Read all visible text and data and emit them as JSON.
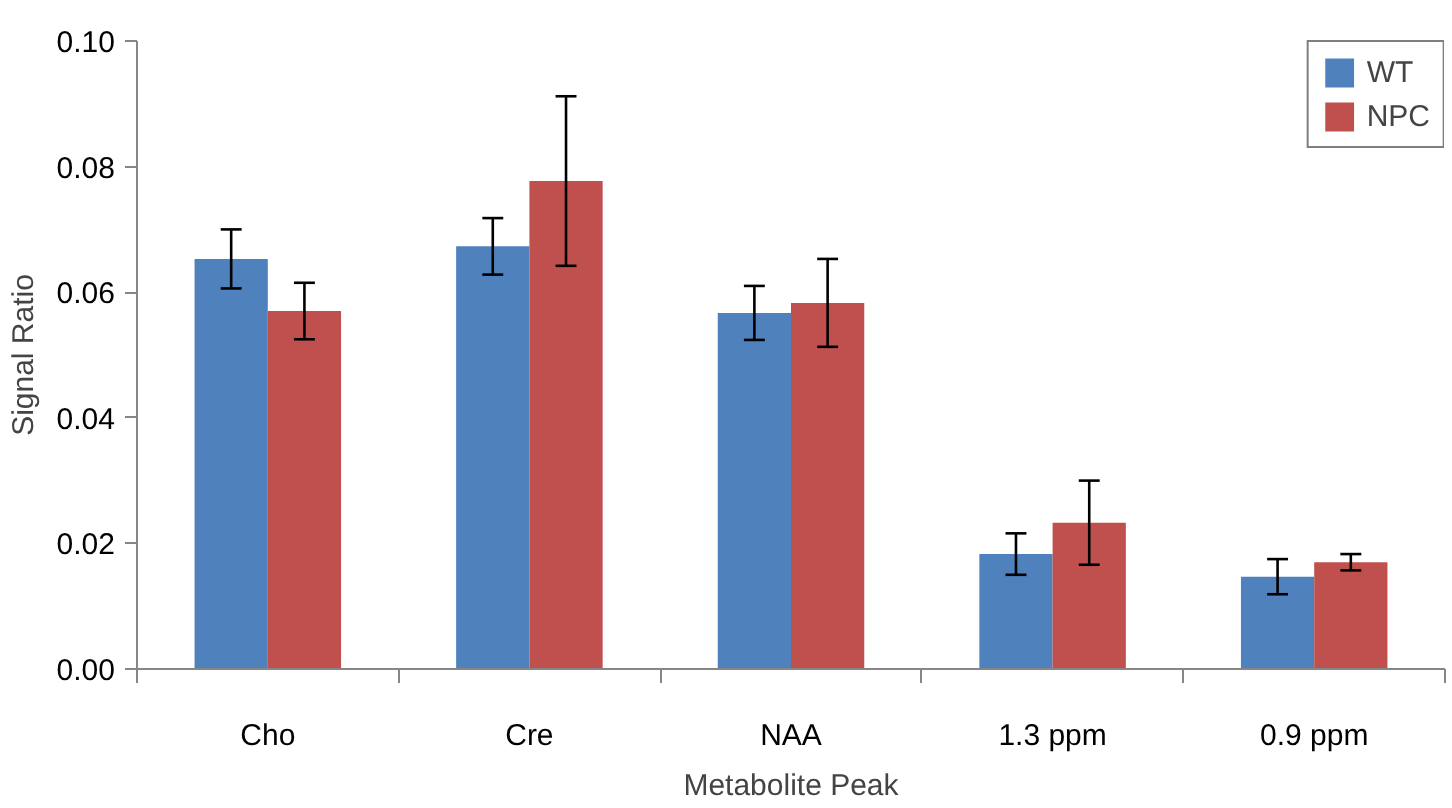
{
  "chart_data": {
    "type": "bar",
    "xlabel": "Metabolite Peak",
    "ylabel": "Signal Ratio",
    "categories": [
      "Cho",
      "Cre",
      "NAA",
      "1.3 ppm",
      "0.9 ppm"
    ],
    "series": [
      {
        "name": "WT",
        "color": "#4f81bd",
        "values": [
          0.0653,
          0.0673,
          0.0567,
          0.0183,
          0.0147
        ],
        "errors": [
          0.0047,
          0.0045,
          0.0043,
          0.0033,
          0.0028
        ]
      },
      {
        "name": "NPC",
        "color": "#c0504d",
        "values": [
          0.057,
          0.0777,
          0.0583,
          0.0233,
          0.017
        ],
        "errors": [
          0.0045,
          0.0135,
          0.007,
          0.0067,
          0.0013
        ]
      }
    ],
    "ylim": [
      0,
      0.1
    ],
    "yticks": [
      {
        "value": 0,
        "label": "0.00"
      },
      {
        "value": 0.02,
        "label": "0.02"
      },
      {
        "value": 0.04,
        "label": "0.04"
      },
      {
        "value": 0.06,
        "label": "0.06"
      },
      {
        "value": 0.08,
        "label": "0.08"
      },
      {
        "value": 0.1,
        "label": "0.10"
      }
    ],
    "grid": false,
    "legend": "top right"
  }
}
